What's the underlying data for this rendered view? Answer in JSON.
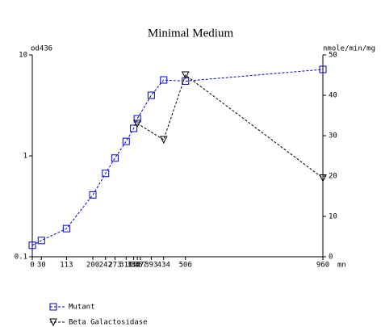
{
  "chart_data": {
    "type": "line",
    "title": "Minimal Medium",
    "y_label": "od436",
    "y2_label": "nmole/min/mg",
    "x_label": "mn",
    "xlim": [
      0,
      960
    ],
    "xticks": [
      0,
      30,
      113,
      200,
      242,
      273,
      310,
      335,
      347,
      357,
      393,
      434,
      506,
      960
    ],
    "ylim": [
      0.1,
      10
    ],
    "yticks": [
      0.1,
      1,
      10
    ],
    "yscale": "log",
    "y2lim": [
      0,
      50
    ],
    "y2ticks": [
      0,
      10,
      20,
      30,
      40,
      50
    ],
    "legend": "bottom-left",
    "series": [
      {
        "name": "Mutant",
        "color": "#0000cc",
        "marker": "square",
        "axis": "y",
        "x": [
          0,
          30,
          113,
          200,
          242,
          273,
          310,
          335,
          347,
          393,
          434,
          506,
          960
        ],
        "values": [
          0.13,
          0.145,
          0.19,
          0.41,
          0.67,
          0.95,
          1.39,
          1.87,
          2.33,
          3.98,
          5.65,
          5.5,
          7.18
        ]
      },
      {
        "name": "Beta Galactosidase",
        "color": "#000000",
        "marker": "triangle-down",
        "axis": "y2",
        "x": [
          347,
          434,
          506,
          960
        ],
        "values": [
          33,
          29,
          45,
          19.5
        ]
      }
    ]
  }
}
